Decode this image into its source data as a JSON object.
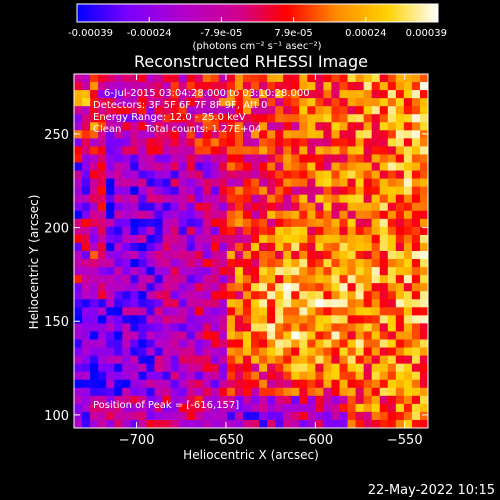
{
  "chart_data": {
    "type": "heatmap",
    "title": "Reconstructed RHESSI Image",
    "xlabel": "Heliocentric X (arcsec)",
    "ylabel": "Heliocentric Y (arcsec)",
    "xlim": [
      -735,
      -537
    ],
    "ylim": [
      93,
      282
    ],
    "x_ticks": [
      -700,
      -650,
      -600,
      -550
    ],
    "x_tick_labels": [
      "−700",
      "−650",
      "−600",
      "−550"
    ],
    "y_ticks": [
      100,
      150,
      200,
      250
    ],
    "y_tick_labels": [
      "100",
      "150",
      "200",
      "250"
    ],
    "colorbar": {
      "range": [
        -0.00039,
        0.00039
      ],
      "tick_labels": [
        "-0.00039",
        "-0.00024",
        "-7.9e-05",
        "7.9e-05",
        "0.00024",
        "0.00039"
      ],
      "unit_label": "(photons cm⁻² s⁻¹ asec⁻²)",
      "colormap": [
        "#0000ff",
        "#7a00ff",
        "#b400c8",
        "#d2008c",
        "#ff0000",
        "#ff8c00",
        "#ffd200",
        "#ffffff"
      ]
    },
    "annotations": {
      "time_range": "6-Jul-2015 03:04:28.000 to 03:10:28.000",
      "detectors": "Detectors: 3F 5F 6F 7F 8F 9F, Att 0",
      "energy": "Energy Range: 12.0 - 25.0 keV",
      "method": "Clean",
      "counts": "Total counts: 1.27E+04",
      "peak": "Position of Peak = [-616,157]"
    },
    "peak_position": [
      -616,
      157
    ],
    "grid": false
  },
  "footer": {
    "date": "22-May-2022 10:15"
  }
}
